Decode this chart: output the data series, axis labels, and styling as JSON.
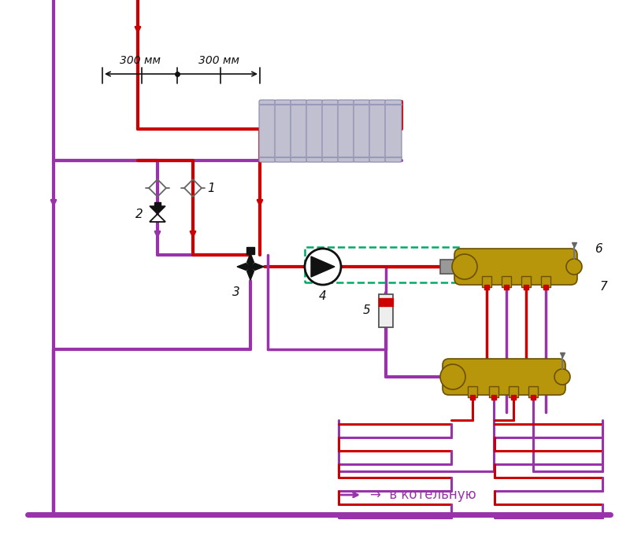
{
  "bg_color": "#ffffff",
  "red": "#cc0000",
  "purple": "#9933aa",
  "gold": "#b8960c",
  "gray_light": "#c8c8d8",
  "dashed_green": "#00aa66",
  "black": "#111111",
  "title_bottom": "→  в котельную",
  "label_300_1": "300 мм",
  "label_300_2": "300 мм",
  "labels": [
    "1",
    "2",
    "3",
    "4",
    "5",
    "6",
    "7"
  ]
}
